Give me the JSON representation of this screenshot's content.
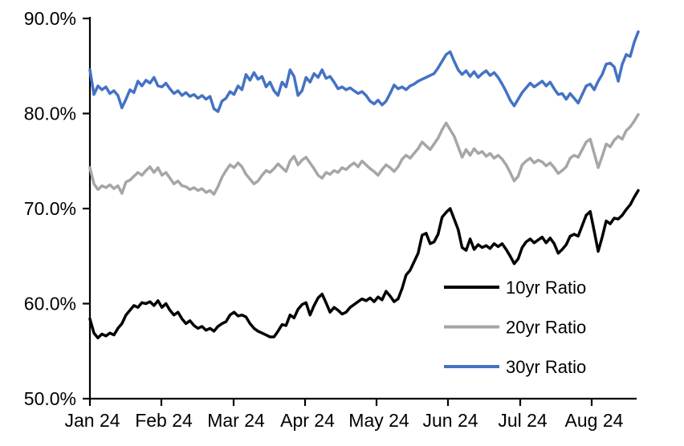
{
  "chart_data": {
    "type": "line",
    "title": "",
    "xlabel": "",
    "ylabel": "",
    "ylim": [
      50,
      90
    ],
    "grid": false,
    "legend_position": "inside-lower-right",
    "x_tick_labels": [
      "Jan 24",
      "Feb 24",
      "Mar 24",
      "Apr 24",
      "May 24",
      "Jun 24",
      "Jul 24",
      "Aug 24"
    ],
    "y_tick_labels": [
      "90.0%",
      "80.0%",
      "70.0%",
      "60.0%",
      "50.0%"
    ],
    "y_tick_values": [
      90,
      80,
      70,
      60,
      50
    ],
    "series": [
      {
        "name": "10yr Ratio",
        "color": "#000000",
        "values": [
          58.4,
          56.9,
          56.4,
          56.8,
          56.6,
          56.9,
          56.7,
          57.4,
          57.9,
          58.8,
          59.3,
          59.8,
          59.6,
          60.1,
          60.0,
          60.2,
          59.8,
          60.3,
          59.6,
          60.0,
          59.3,
          58.8,
          59.1,
          58.4,
          57.9,
          58.2,
          57.7,
          57.4,
          57.6,
          57.2,
          57.4,
          57.1,
          57.6,
          57.9,
          58.1,
          58.8,
          59.1,
          58.7,
          58.8,
          58.6,
          57.9,
          57.4,
          57.1,
          56.9,
          56.7,
          56.5,
          56.5,
          57.1,
          57.8,
          57.7,
          58.8,
          58.5,
          59.4,
          59.9,
          60.1,
          58.8,
          59.8,
          60.6,
          61.0,
          60.1,
          59.1,
          59.6,
          59.3,
          58.9,
          59.1,
          59.6,
          59.9,
          60.2,
          60.5,
          60.3,
          60.6,
          60.2,
          60.7,
          60.4,
          61.3,
          60.8,
          60.2,
          60.5,
          61.6,
          63.0,
          63.5,
          64.4,
          65.3,
          67.2,
          67.4,
          66.3,
          66.5,
          67.3,
          69.1,
          69.6,
          70.0,
          68.9,
          67.8,
          65.9,
          65.6,
          66.8,
          65.7,
          66.2,
          65.9,
          66.1,
          65.8,
          66.3,
          66.0,
          66.3,
          65.7,
          65.0,
          64.2,
          64.7,
          65.9,
          66.5,
          66.8,
          66.4,
          66.7,
          67.0,
          66.4,
          66.9,
          66.3,
          65.3,
          65.7,
          66.2,
          67.1,
          67.3,
          67.1,
          68.2,
          69.3,
          69.7,
          67.6,
          65.5,
          67.0,
          68.7,
          68.4,
          69.0,
          68.9,
          69.3,
          69.9,
          70.4,
          71.2,
          71.9
        ]
      },
      {
        "name": "20yr Ratio",
        "color": "#A6A6A6",
        "values": [
          74.3,
          72.6,
          72.0,
          72.4,
          72.2,
          72.5,
          72.1,
          72.4,
          71.6,
          72.8,
          73.0,
          73.4,
          73.8,
          73.5,
          74.0,
          74.4,
          73.8,
          74.3,
          73.5,
          73.8,
          73.2,
          72.6,
          72.9,
          72.4,
          72.3,
          72.0,
          72.2,
          71.9,
          72.1,
          71.7,
          71.9,
          71.5,
          72.3,
          73.3,
          74.0,
          74.6,
          74.3,
          74.8,
          74.4,
          73.6,
          73.1,
          72.6,
          72.9,
          73.5,
          74.0,
          73.8,
          74.2,
          74.7,
          74.3,
          73.9,
          75.0,
          75.5,
          74.6,
          75.1,
          75.4,
          74.8,
          74.2,
          73.5,
          73.2,
          73.8,
          73.6,
          74.0,
          73.8,
          74.3,
          74.1,
          74.5,
          74.8,
          74.4,
          75.0,
          74.6,
          74.2,
          73.9,
          73.5,
          74.1,
          74.6,
          74.3,
          73.9,
          74.4,
          75.2,
          75.6,
          75.3,
          75.8,
          76.3,
          77.0,
          76.6,
          76.2,
          76.8,
          77.4,
          78.3,
          79.0,
          78.3,
          77.6,
          76.5,
          75.4,
          76.2,
          75.6,
          76.3,
          75.8,
          76.0,
          75.5,
          75.8,
          75.3,
          75.6,
          75.2,
          74.6,
          73.8,
          72.9,
          73.4,
          74.6,
          75.0,
          75.3,
          74.8,
          75.1,
          74.9,
          74.5,
          74.8,
          74.3,
          73.7,
          74.0,
          74.4,
          75.3,
          75.6,
          75.4,
          76.2,
          77.0,
          77.3,
          75.8,
          74.3,
          75.5,
          76.8,
          76.5,
          77.2,
          77.6,
          77.3,
          78.2,
          78.6,
          79.2,
          79.9
        ]
      },
      {
        "name": "30yr Ratio",
        "color": "#4472C4",
        "values": [
          84.6,
          82.0,
          82.9,
          82.5,
          82.8,
          82.1,
          82.4,
          81.9,
          80.6,
          81.5,
          82.5,
          82.2,
          83.4,
          82.9,
          83.5,
          83.2,
          83.8,
          82.9,
          82.8,
          83.2,
          82.6,
          82.1,
          82.4,
          81.9,
          82.2,
          81.8,
          82.0,
          81.6,
          81.9,
          81.5,
          81.8,
          80.5,
          80.2,
          81.3,
          81.6,
          82.3,
          82.0,
          82.9,
          82.5,
          84.1,
          83.5,
          84.3,
          83.6,
          83.9,
          82.8,
          83.3,
          82.4,
          81.9,
          83.3,
          82.8,
          84.6,
          83.9,
          81.9,
          82.4,
          83.8,
          83.3,
          84.2,
          83.8,
          84.6,
          83.7,
          83.9,
          83.3,
          82.6,
          82.8,
          82.5,
          82.7,
          82.4,
          82.1,
          82.3,
          81.9,
          81.3,
          81.0,
          81.4,
          80.9,
          81.3,
          82.1,
          83.0,
          82.6,
          82.8,
          82.5,
          82.9,
          83.1,
          83.4,
          83.6,
          83.8,
          84.0,
          84.2,
          84.8,
          85.5,
          86.2,
          86.5,
          85.5,
          84.6,
          84.1,
          84.5,
          83.9,
          84.4,
          83.8,
          84.2,
          84.5,
          84.0,
          84.3,
          83.8,
          83.1,
          82.3,
          81.4,
          80.8,
          81.5,
          82.2,
          82.7,
          83.2,
          82.8,
          83.1,
          83.4,
          82.9,
          83.3,
          82.6,
          82.0,
          82.1,
          81.5,
          82.1,
          81.6,
          81.1,
          82.0,
          82.9,
          83.1,
          82.5,
          83.4,
          84.1,
          85.2,
          85.3,
          84.9,
          83.4,
          85.2,
          86.2,
          86.0,
          87.5,
          88.6
        ]
      }
    ]
  }
}
